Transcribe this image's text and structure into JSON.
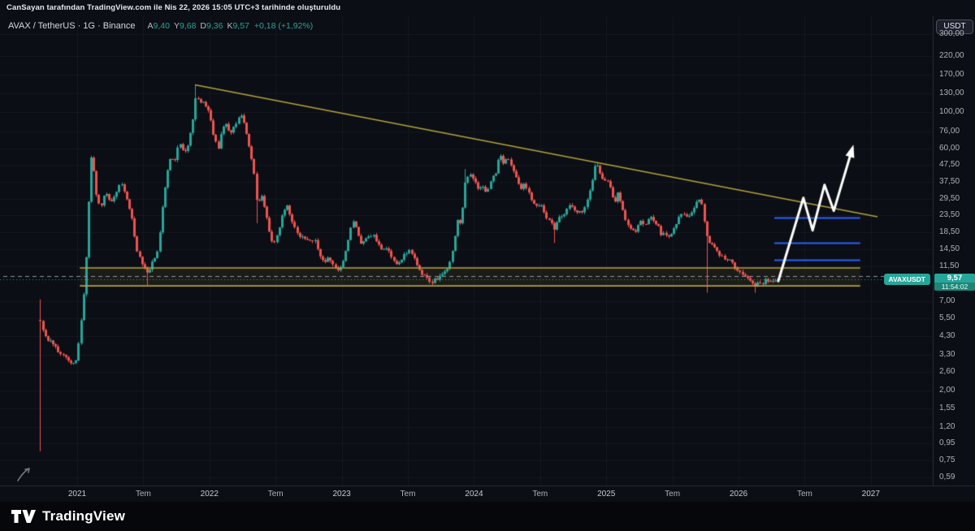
{
  "attribution": "CanSayan tarafından TradingView.com ile Nis 22, 2026 15:05 UTC+3 tarihinde oluşturuldu",
  "legend": {
    "title": "AVAX / TetherUS · 1G · Binance",
    "ohlc": [
      {
        "key": "A",
        "value": "9,40"
      },
      {
        "key": "Y",
        "value": "9,68"
      },
      {
        "key": "D",
        "value": "9,36"
      },
      {
        "key": "K",
        "value": "9,57"
      }
    ],
    "change": "+0,18 (+1,92%)"
  },
  "axis": {
    "currency_button": "USDT",
    "price_labels": [
      {
        "label": "300,00",
        "value": 300
      },
      {
        "label": "220,00",
        "value": 220
      },
      {
        "label": "170,00",
        "value": 170
      },
      {
        "label": "130,00",
        "value": 130
      },
      {
        "label": "100,00",
        "value": 100
      },
      {
        "label": "76,00",
        "value": 76
      },
      {
        "label": "60,00",
        "value": 60
      },
      {
        "label": "47,50",
        "value": 47.5
      },
      {
        "label": "37,50",
        "value": 37.5
      },
      {
        "label": "29,50",
        "value": 29.5
      },
      {
        "label": "23,50",
        "value": 23.5
      },
      {
        "label": "18,50",
        "value": 18.5
      },
      {
        "label": "14,50",
        "value": 14.5
      },
      {
        "label": "11,50",
        "value": 11.5
      },
      {
        "label": "7,00",
        "value": 7.0
      },
      {
        "label": "5,50",
        "value": 5.5
      },
      {
        "label": "4,30",
        "value": 4.3
      },
      {
        "label": "3,30",
        "value": 3.3
      },
      {
        "label": "2,60",
        "value": 2.6
      },
      {
        "label": "2,00",
        "value": 2.0
      },
      {
        "label": "1,55",
        "value": 1.55
      },
      {
        "label": "1,20",
        "value": 1.2
      },
      {
        "label": "0,95",
        "value": 0.95
      },
      {
        "label": "0,75",
        "value": 0.75
      },
      {
        "label": "0,59",
        "value": 0.59
      }
    ]
  },
  "time_axis": [
    {
      "label": "2021",
      "t": 2021.0,
      "type": "year"
    },
    {
      "label": "Tem",
      "t": 2021.5,
      "type": "month"
    },
    {
      "label": "2022",
      "t": 2022.0,
      "type": "year"
    },
    {
      "label": "Tem",
      "t": 2022.5,
      "type": "month"
    },
    {
      "label": "2023",
      "t": 2023.0,
      "type": "year"
    },
    {
      "label": "Tem",
      "t": 2023.5,
      "type": "month"
    },
    {
      "label": "2024",
      "t": 2024.0,
      "type": "year"
    },
    {
      "label": "Tem",
      "t": 2024.5,
      "type": "month"
    },
    {
      "label": "2025",
      "t": 2025.0,
      "type": "year"
    },
    {
      "label": "Tem",
      "t": 2025.5,
      "type": "month"
    },
    {
      "label": "2026",
      "t": 2026.0,
      "type": "year"
    },
    {
      "label": "Tem",
      "t": 2026.5,
      "type": "month"
    },
    {
      "label": "2027",
      "t": 2027.0,
      "type": "year"
    }
  ],
  "current": {
    "symbol_badge": "AVAXUSDT",
    "price": "9,57",
    "price_value": 9.57,
    "countdown": "11:54:02"
  },
  "footer": {
    "brand": "TradingView"
  },
  "colors": {
    "up": "#26a69a",
    "down": "#ef5350",
    "gold": "#b5a13a",
    "blue": "#2962ff",
    "arrow": "#ffffff",
    "grid": "rgba(135,145,165,0.08)",
    "dashed": "#9094a0"
  },
  "chart_data": {
    "type": "candlestick",
    "symbol": "AVAX / TetherUS",
    "ticker": "AVAXUSDT",
    "exchange": "Binance",
    "interval": "1G",
    "yscale": "log",
    "xlim": [
      2020.47,
      2027.33
    ],
    "ylim": [
      0.5,
      320
    ],
    "x_range": [
      2020.72,
      2026.31
    ],
    "last_candle": {
      "o": 9.4,
      "h": 9.68,
      "l": 9.36,
      "c": 9.57
    },
    "price_path": [
      [
        2020.72,
        5.2
      ],
      [
        2020.76,
        4.3
      ],
      [
        2020.81,
        3.9
      ],
      [
        2020.87,
        3.4
      ],
      [
        2020.92,
        3.1
      ],
      [
        2020.96,
        2.8
      ],
      [
        2021.0,
        3.3
      ],
      [
        2021.04,
        6.5
      ],
      [
        2021.07,
        14
      ],
      [
        2021.1,
        55
      ],
      [
        2021.12,
        48
      ],
      [
        2021.14,
        31
      ],
      [
        2021.17,
        26
      ],
      [
        2021.21,
        33
      ],
      [
        2021.25,
        28
      ],
      [
        2021.29,
        32
      ],
      [
        2021.33,
        37
      ],
      [
        2021.37,
        30
      ],
      [
        2021.41,
        23
      ],
      [
        2021.45,
        14
      ],
      [
        2021.49,
        12
      ],
      [
        2021.53,
        10.2
      ],
      [
        2021.57,
        12.5
      ],
      [
        2021.61,
        14.5
      ],
      [
        2021.65,
        30
      ],
      [
        2021.69,
        48
      ],
      [
        2021.71,
        58
      ],
      [
        2021.73,
        47
      ],
      [
        2021.77,
        65
      ],
      [
        2021.8,
        57
      ],
      [
        2021.83,
        61
      ],
      [
        2021.86,
        78
      ],
      [
        2021.88,
        97
      ],
      [
        2021.9,
        134
      ],
      [
        2021.92,
        110
      ],
      [
        2021.94,
        121
      ],
      [
        2021.96,
        104
      ],
      [
        2021.98,
        112
      ],
      [
        2022.0,
        96
      ],
      [
        2022.03,
        72
      ],
      [
        2022.06,
        59
      ],
      [
        2022.09,
        77
      ],
      [
        2022.12,
        86
      ],
      [
        2022.15,
        74
      ],
      [
        2022.18,
        79
      ],
      [
        2022.21,
        89
      ],
      [
        2022.24,
        98
      ],
      [
        2022.27,
        76
      ],
      [
        2022.3,
        60
      ],
      [
        2022.33,
        48
      ],
      [
        2022.36,
        27
      ],
      [
        2022.39,
        31
      ],
      [
        2022.42,
        25
      ],
      [
        2022.45,
        19
      ],
      [
        2022.48,
        15.5
      ],
      [
        2022.51,
        18
      ],
      [
        2022.54,
        22
      ],
      [
        2022.58,
        28
      ],
      [
        2022.61,
        23
      ],
      [
        2022.64,
        19.5
      ],
      [
        2022.68,
        17.5
      ],
      [
        2022.72,
        17
      ],
      [
        2022.76,
        16
      ],
      [
        2022.8,
        16.5
      ],
      [
        2022.83,
        13
      ],
      [
        2022.86,
        12.3
      ],
      [
        2022.9,
        12.8
      ],
      [
        2022.94,
        11.3
      ],
      [
        2022.98,
        10.9
      ],
      [
        2023.02,
        13
      ],
      [
        2023.06,
        19
      ],
      [
        2023.09,
        21.5
      ],
      [
        2023.12,
        17.5
      ],
      [
        2023.15,
        15.8
      ],
      [
        2023.19,
        17.3
      ],
      [
        2023.23,
        18
      ],
      [
        2023.27,
        15.5
      ],
      [
        2023.31,
        14.3
      ],
      [
        2023.35,
        14.8
      ],
      [
        2023.39,
        12.2
      ],
      [
        2023.43,
        11.9
      ],
      [
        2023.47,
        13.6
      ],
      [
        2023.51,
        14.2
      ],
      [
        2023.55,
        12.6
      ],
      [
        2023.59,
        10.6
      ],
      [
        2023.63,
        10.1
      ],
      [
        2023.67,
        9.2
      ],
      [
        2023.71,
        9.6
      ],
      [
        2023.75,
        10.1
      ],
      [
        2023.79,
        10.9
      ],
      [
        2023.83,
        13.5
      ],
      [
        2023.87,
        21.5
      ],
      [
        2023.9,
        21
      ],
      [
        2023.93,
        38
      ],
      [
        2023.96,
        43
      ],
      [
        2023.99,
        39
      ],
      [
        2024.03,
        34
      ],
      [
        2024.06,
        36.5
      ],
      [
        2024.09,
        31
      ],
      [
        2024.12,
        38
      ],
      [
        2024.16,
        42
      ],
      [
        2024.19,
        57
      ],
      [
        2024.22,
        49
      ],
      [
        2024.25,
        54
      ],
      [
        2024.28,
        47
      ],
      [
        2024.32,
        39
      ],
      [
        2024.35,
        34
      ],
      [
        2024.38,
        36
      ],
      [
        2024.42,
        31
      ],
      [
        2024.46,
        26
      ],
      [
        2024.5,
        28
      ],
      [
        2024.54,
        23.5
      ],
      [
        2024.58,
        21
      ],
      [
        2024.6,
        19
      ],
      [
        2024.64,
        23
      ],
      [
        2024.68,
        24.5
      ],
      [
        2024.72,
        27.5
      ],
      [
        2024.76,
        26
      ],
      [
        2024.8,
        24
      ],
      [
        2024.84,
        27
      ],
      [
        2024.88,
        35
      ],
      [
        2024.92,
        49
      ],
      [
        2024.95,
        42
      ],
      [
        2024.98,
        39
      ],
      [
        2025.02,
        36
      ],
      [
        2025.06,
        27
      ],
      [
        2025.09,
        33
      ],
      [
        2025.13,
        24
      ],
      [
        2025.17,
        19.5
      ],
      [
        2025.21,
        18.5
      ],
      [
        2025.25,
        21.5
      ],
      [
        2025.29,
        20
      ],
      [
        2025.33,
        23.5
      ],
      [
        2025.37,
        21
      ],
      [
        2025.41,
        18.5
      ],
      [
        2025.45,
        17.5
      ],
      [
        2025.49,
        18.5
      ],
      [
        2025.53,
        21.5
      ],
      [
        2025.57,
        24
      ],
      [
        2025.61,
        22.5
      ],
      [
        2025.65,
        25
      ],
      [
        2025.69,
        30
      ],
      [
        2025.72,
        28
      ],
      [
        2025.76,
        17
      ],
      [
        2025.8,
        15.5
      ],
      [
        2025.84,
        14.2
      ],
      [
        2025.88,
        13.2
      ],
      [
        2025.92,
        12.6
      ],
      [
        2025.96,
        11.6
      ],
      [
        2026.0,
        10.6
      ],
      [
        2026.04,
        10.1
      ],
      [
        2026.08,
        9.3
      ],
      [
        2026.12,
        8.8
      ],
      [
        2026.16,
        9.0
      ],
      [
        2026.2,
        9.4
      ],
      [
        2026.24,
        9.2
      ],
      [
        2026.28,
        9.4
      ],
      [
        2026.31,
        9.57
      ]
    ],
    "spikes": [
      {
        "t": 2020.72,
        "high": 7.2,
        "low": 0.85
      },
      {
        "t": 2021.53,
        "low": 8.8
      },
      {
        "t": 2021.9,
        "high": 147
      },
      {
        "t": 2022.36,
        "low": 21
      },
      {
        "t": 2023.93,
        "high": 45
      },
      {
        "t": 2024.6,
        "low": 15.9
      },
      {
        "t": 2025.76,
        "low": 7.9
      },
      {
        "t": 2026.12,
        "low": 7.9
      }
    ],
    "drawings": {
      "trendline": {
        "from": [
          2021.89,
          147
        ],
        "to": [
          2027.05,
          23
        ],
        "color": "gold"
      },
      "support_band": {
        "from_t": 2021.02,
        "to_t": 2026.92,
        "top": 11.2,
        "bottom": 8.7,
        "color": "gold"
      },
      "levels": [
        {
          "price": 22.7,
          "from_t": 2026.27,
          "to_t": 2026.92
        },
        {
          "price": 15.9,
          "from_t": 2026.27,
          "to_t": 2026.92
        },
        {
          "price": 12.6,
          "from_t": 2026.27,
          "to_t": 2026.92
        }
      ],
      "dashed_line_price": 10.0,
      "current_price_line": 9.57,
      "projection_arrow": [
        [
          2026.3,
          9.3
        ],
        [
          2026.49,
          30
        ],
        [
          2026.56,
          19
        ],
        [
          2026.65,
          36
        ],
        [
          2026.72,
          25
        ],
        [
          2026.86,
          60
        ]
      ]
    }
  }
}
